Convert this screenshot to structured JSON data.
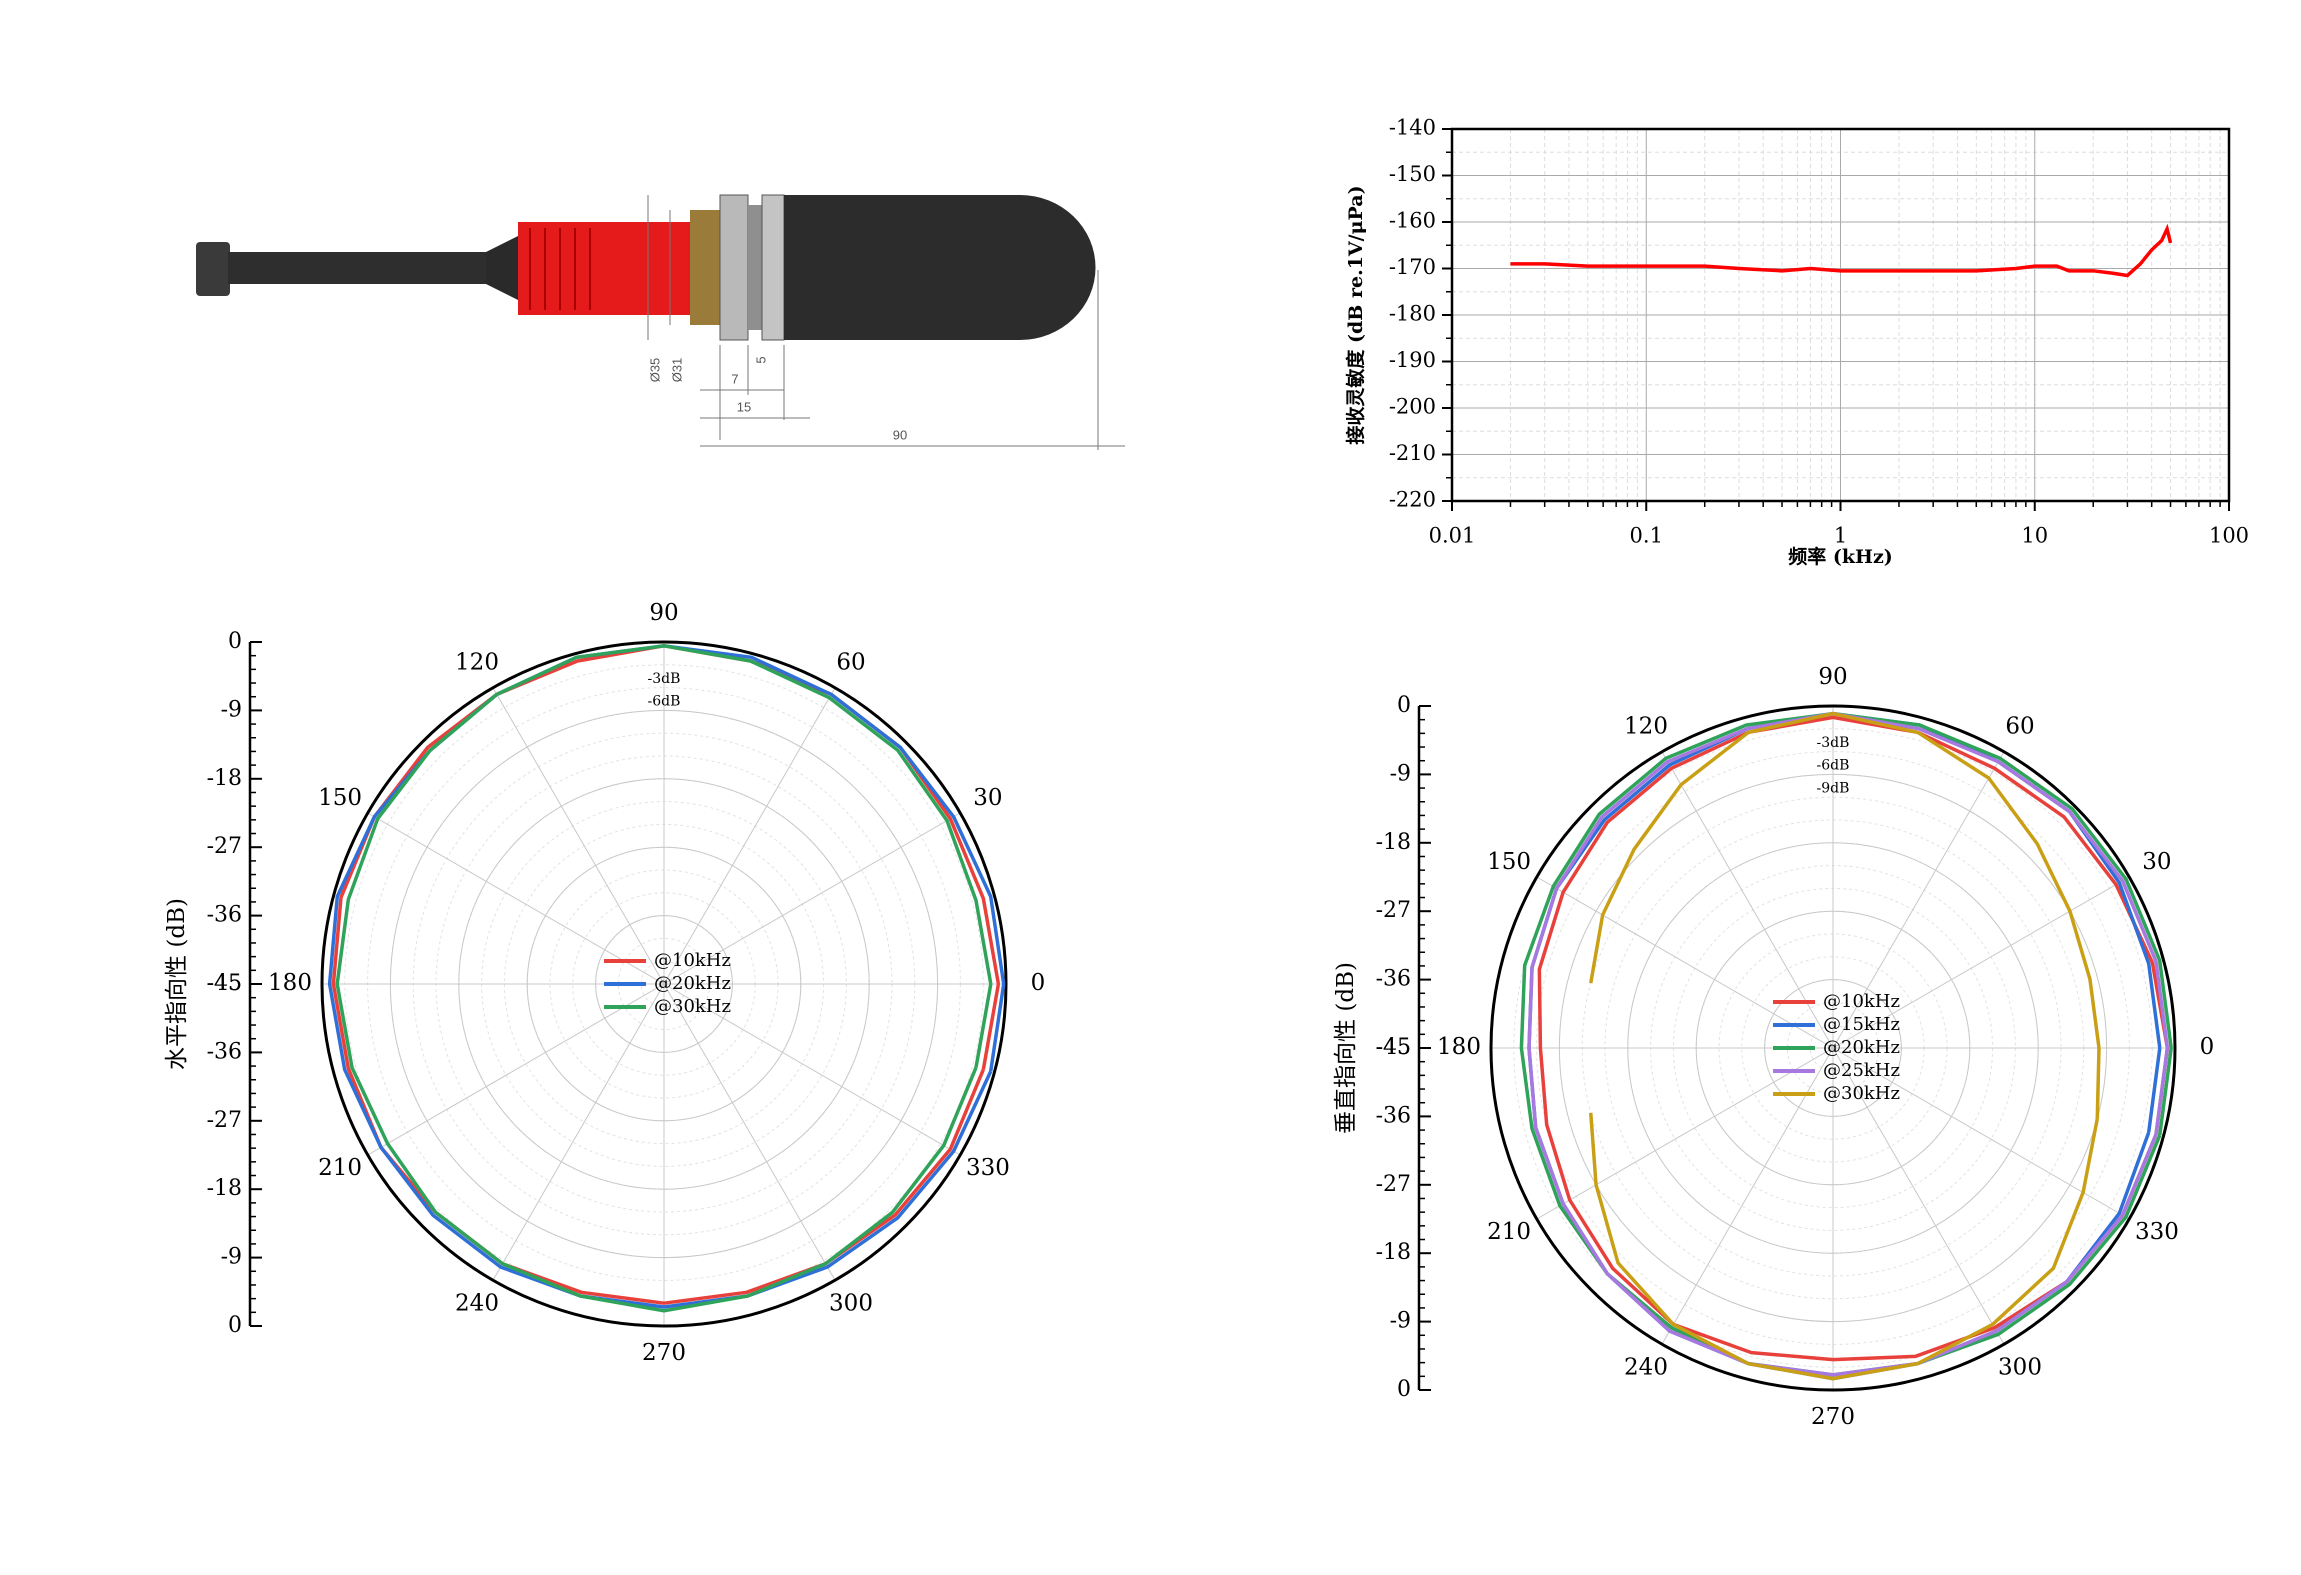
{
  "drawing": {
    "dimensions": [
      "Ø35",
      "Ø31",
      "7",
      "5",
      "15",
      "90"
    ]
  },
  "chart_data": [
    {
      "type": "line",
      "x_label": "频率 (kHz)",
      "y_label": "接收灵敏度 (dB re.1V/μPa)",
      "xscale": "log",
      "xlim": [
        0.01,
        100
      ],
      "xticks": [
        0.01,
        0.1,
        1,
        10,
        100
      ],
      "ylim": [
        -220,
        -140
      ],
      "yticks": [
        -220,
        -210,
        -200,
        -190,
        -180,
        -170,
        -160,
        -150,
        -140
      ],
      "grid": true,
      "series": [
        {
          "color": "#ff0000",
          "x": [
            0.02,
            0.03,
            0.05,
            0.1,
            0.2,
            0.3,
            0.5,
            0.7,
            1,
            2,
            5,
            8,
            10,
            13,
            15,
            20,
            25,
            30,
            35,
            40,
            45,
            48,
            50
          ],
          "values": [
            -169,
            -169,
            -169.5,
            -169.5,
            -169.5,
            -170,
            -170.5,
            -170,
            -170.5,
            -170.5,
            -170.5,
            -170,
            -169.5,
            -169.5,
            -170.5,
            -170.5,
            -171,
            -171.5,
            -169,
            -166,
            -164,
            -161.5,
            -164.5
          ]
        }
      ]
    },
    {
      "type": "polar",
      "y_label": "水平指向性 (dB)",
      "rlim": [
        -45,
        0
      ],
      "rticks": [
        -45,
        -36,
        -27,
        -18,
        -9,
        0
      ],
      "thetaticks": [
        0,
        30,
        60,
        90,
        120,
        150,
        180,
        210,
        240,
        270,
        300,
        330
      ],
      "ring_labels": [
        {
          "value": -3,
          "label": "-3dB"
        },
        {
          "value": -6,
          "label": "-6dB"
        }
      ],
      "ring_label_color": "#0000cc",
      "angles": [
        0,
        15,
        30,
        45,
        60,
        75,
        90,
        105,
        120,
        135,
        150,
        165,
        180,
        195,
        210,
        225,
        240,
        255,
        270,
        285,
        300,
        315,
        330,
        345
      ],
      "series": [
        {
          "name": "@10kHz",
          "color": "#e8413c",
          "values": [
            -1,
            -1.5,
            -1.5,
            -1,
            -1,
            -1,
            -0.5,
            -1,
            -1,
            -1,
            -1,
            -1,
            -1.5,
            -2,
            -2,
            -2.5,
            -2.5,
            -3,
            -3,
            -3,
            -2.5,
            -2,
            -1.5,
            -1.5
          ]
        },
        {
          "name": "@20kHz",
          "color": "#2f6fd8",
          "values": [
            -0.3,
            -0.5,
            -1,
            -1,
            -1,
            -0.5,
            -0.5,
            -0.5,
            -1,
            -1.5,
            -1,
            -0.5,
            -1,
            -1.5,
            -2,
            -2,
            -2,
            -2.5,
            -2.5,
            -2.5,
            -2,
            -1.5,
            -1,
            -0.5
          ]
        },
        {
          "name": "@30kHz",
          "color": "#2fa35a",
          "values": [
            -2,
            -2.5,
            -2,
            -1.5,
            -1.5,
            -1,
            -0.5,
            -0.5,
            -1,
            -1.5,
            -1.5,
            -2,
            -2,
            -2.5,
            -3,
            -2.5,
            -2.5,
            -2.5,
            -2,
            -2.5,
            -2.5,
            -2.5,
            -2.5,
            -2.5
          ]
        }
      ]
    },
    {
      "type": "polar",
      "y_label": "垂直指向性 (dB)",
      "rlim": [
        -45,
        0
      ],
      "rticks": [
        -45,
        -36,
        -27,
        -18,
        -9,
        0
      ],
      "thetaticks": [
        0,
        30,
        60,
        90,
        120,
        150,
        180,
        210,
        240,
        270,
        300,
        330
      ],
      "ring_labels": [
        {
          "value": -3,
          "label": "-3dB"
        },
        {
          "value": -6,
          "label": "-6dB"
        },
        {
          "value": -9,
          "label": "-9dB"
        }
      ],
      "ring_label_color": "#555555",
      "angles": [
        0,
        15,
        30,
        45,
        60,
        75,
        90,
        105,
        120,
        135,
        150,
        165,
        180,
        195,
        210,
        225,
        240,
        255,
        270,
        285,
        300,
        315,
        330,
        345
      ],
      "series": [
        {
          "name": "@10kHz",
          "color": "#e8413c",
          "values": [
            -1,
            -1.5,
            -2,
            -2,
            -2.5,
            -2,
            -1.5,
            -2,
            -2.5,
            -3,
            -4,
            -5,
            -6.5,
            -6,
            -5,
            -4,
            -3,
            -3.5,
            -4,
            -3,
            -2.5,
            -1.5,
            -1,
            -1
          ]
        },
        {
          "name": "@15kHz",
          "color": "#2f6fd8",
          "values": [
            -2,
            -2,
            -1.5,
            -1,
            -1.5,
            -1,
            -1,
            -1.5,
            -2,
            -2.5,
            -3,
            -4,
            -5,
            -4.5,
            -4,
            -3,
            -2,
            -2,
            -1.5,
            -2,
            -2,
            -1.5,
            -1.5,
            -2
          ]
        },
        {
          "name": "@20kHz",
          "color": "#2fa35a",
          "values": [
            -0.5,
            -0.5,
            -0.5,
            -0.5,
            -1,
            -1,
            -1,
            -1,
            -1,
            -1.5,
            -2.5,
            -3,
            -4,
            -4,
            -3.5,
            -3,
            -2.5,
            -2,
            -2,
            -2,
            -1.5,
            -1,
            -0.5,
            -0.5
          ]
        },
        {
          "name": "@25kHz",
          "color": "#a678e0",
          "values": [
            -1,
            -1,
            -1,
            -1,
            -1.5,
            -1.5,
            -1,
            -1.5,
            -1.5,
            -2,
            -3,
            -4,
            -5,
            -4.5,
            -4,
            -3,
            -2,
            -2,
            -2,
            -2,
            -2,
            -1.5,
            -1,
            -1
          ]
        },
        {
          "name": "@30kHz",
          "color": "#c9a015",
          "values": [
            -10,
            -10,
            -9,
            -7,
            -4,
            -2,
            -1,
            -2,
            -5,
            -8,
            -10,
            -12,
            null,
            -12,
            -9,
            -5,
            -3,
            -2,
            -1.5,
            -2,
            -3,
            -4,
            -7,
            -9
          ]
        }
      ]
    }
  ]
}
